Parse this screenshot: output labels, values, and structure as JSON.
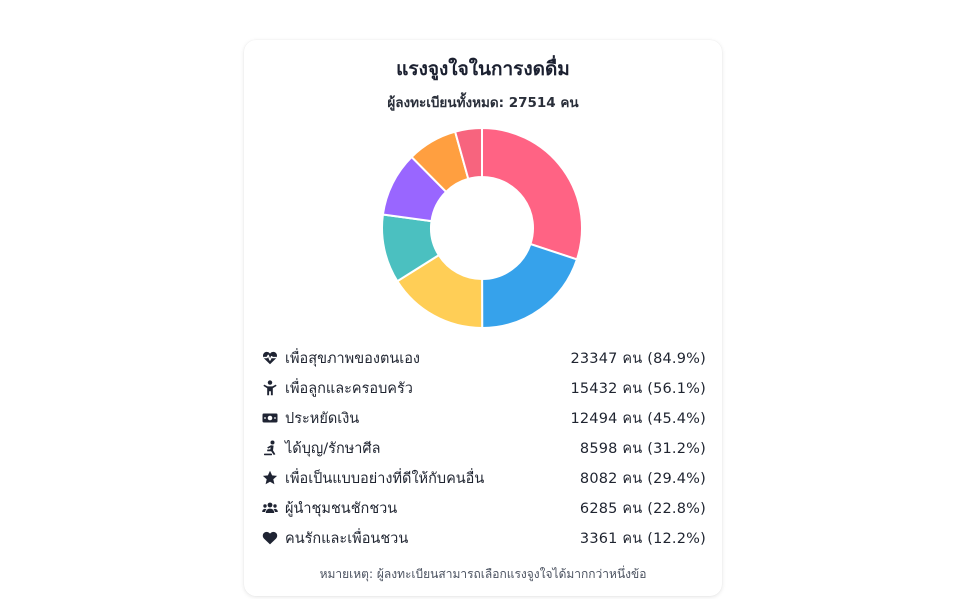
{
  "colors": {
    "segments": [
      "#ff6384",
      "#36a2eb",
      "#ffce56",
      "#4bc0c0",
      "#9966ff",
      "#ff9f40",
      "#f7647e"
    ],
    "icon": "#1f2433"
  },
  "header": {
    "title": "แรงจูงใจในการงดดื่ม",
    "subtitle": "ผู้ลงทะเบียนทั้งหมด: 27514 คน"
  },
  "legend": [
    {
      "icon": "heart-pulse-icon",
      "label": "เพื่อสุขภาพของตนเอง",
      "count": "23347 คน (84.9%)"
    },
    {
      "icon": "child-icon",
      "label": "เพื่อลูกและครอบครัว",
      "count": "15432 คน (56.1%)"
    },
    {
      "icon": "money-bill-icon",
      "label": "ประหยัดเงิน",
      "count": "12494 คน (45.4%)"
    },
    {
      "icon": "praying-person-icon",
      "label": "ได้บุญ/รักษาศีล",
      "count": "8598 คน (31.2%)"
    },
    {
      "icon": "star-icon",
      "label": "เพื่อเป็นแบบอย่างที่ดีให้กับคนอื่น",
      "count": "8082 คน (29.4%)"
    },
    {
      "icon": "users-icon",
      "label": "ผู้นำชุมชนชักชวน",
      "count": "6285 คน (22.8%)"
    },
    {
      "icon": "heart-icon",
      "label": "คนรักและเพื่อนชวน",
      "count": "3361 คน (12.2%)"
    }
  ],
  "footer": {
    "note": "หมายเหตุ: ผู้ลงทะเบียนสามารถเลือกแรงจูงใจได้มากกว่าหนึ่งข้อ"
  },
  "chart_data": {
    "type": "pie",
    "variant": "doughnut",
    "title": "แรงจูงใจในการงดดื่ม",
    "categories": [
      "เพื่อสุขภาพของตนเอง",
      "เพื่อลูกและครอบครัว",
      "ประหยัดเงิน",
      "ได้บุญ/รักษาศีล",
      "เพื่อเป็นแบบอย่างที่ดีให้กับคนอื่น",
      "ผู้นำชุมชนชักชวน",
      "คนรักและเพื่อนชวน"
    ],
    "values": [
      23347,
      15432,
      12494,
      8598,
      8082,
      6285,
      3361
    ],
    "legend": "bottom"
  }
}
